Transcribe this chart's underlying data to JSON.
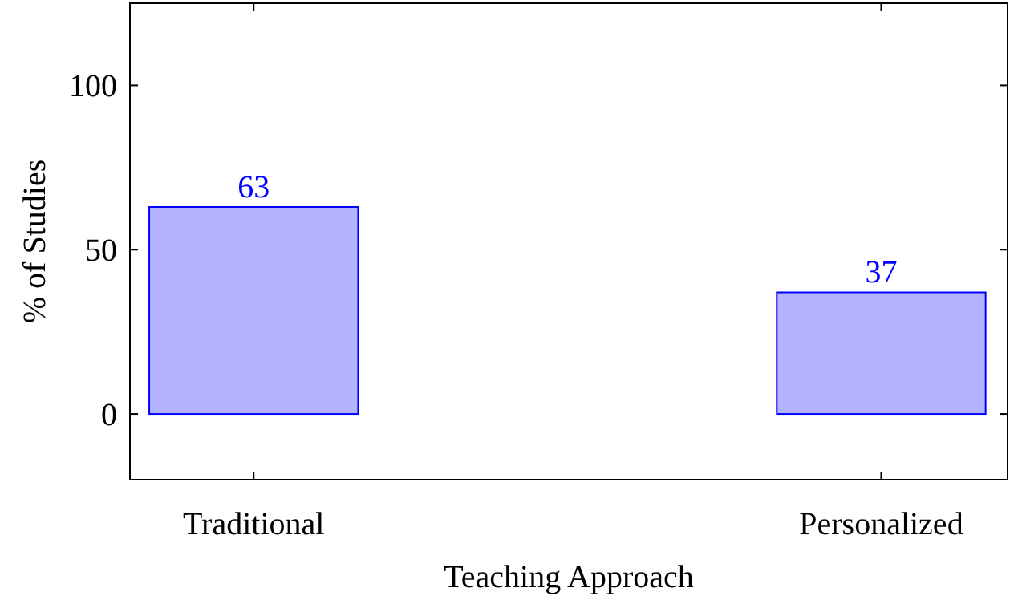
{
  "chart_data": {
    "type": "bar",
    "xlabel": "Teaching Approach",
    "ylabel": "% of Studies",
    "categories": [
      "Traditional",
      "Personalized"
    ],
    "series": [
      {
        "color": "#b3b3ff",
        "values": [
          63,
          37
        ]
      }
    ],
    "ylim": [
      -20,
      125
    ],
    "yticks": [
      0,
      50,
      100
    ],
    "data_labels": true,
    "grid": false
  }
}
